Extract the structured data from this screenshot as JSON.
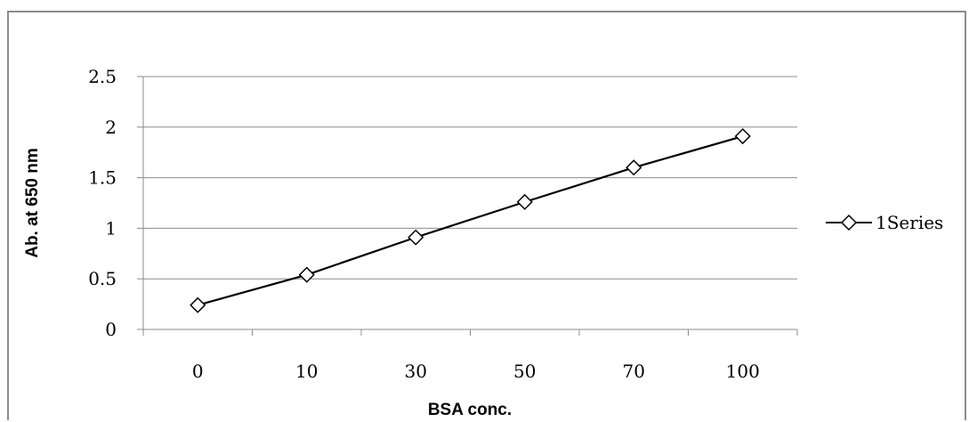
{
  "chart_data": {
    "type": "line",
    "title": "",
    "xlabel": "BSA conc.",
    "ylabel": "Ab. at 650 nm",
    "categories": [
      "0",
      "10",
      "30",
      "50",
      "70",
      "100"
    ],
    "series": [
      {
        "name": "1Series",
        "values": [
          0.24,
          0.54,
          0.91,
          1.26,
          1.6,
          1.91
        ],
        "color": "#000000",
        "marker": "diamond"
      }
    ],
    "ylim": [
      0,
      2.5
    ],
    "yticks": [
      "0",
      "0.5",
      "1",
      "1.5",
      "2",
      "2.5"
    ],
    "grid": true,
    "legend": "right"
  }
}
